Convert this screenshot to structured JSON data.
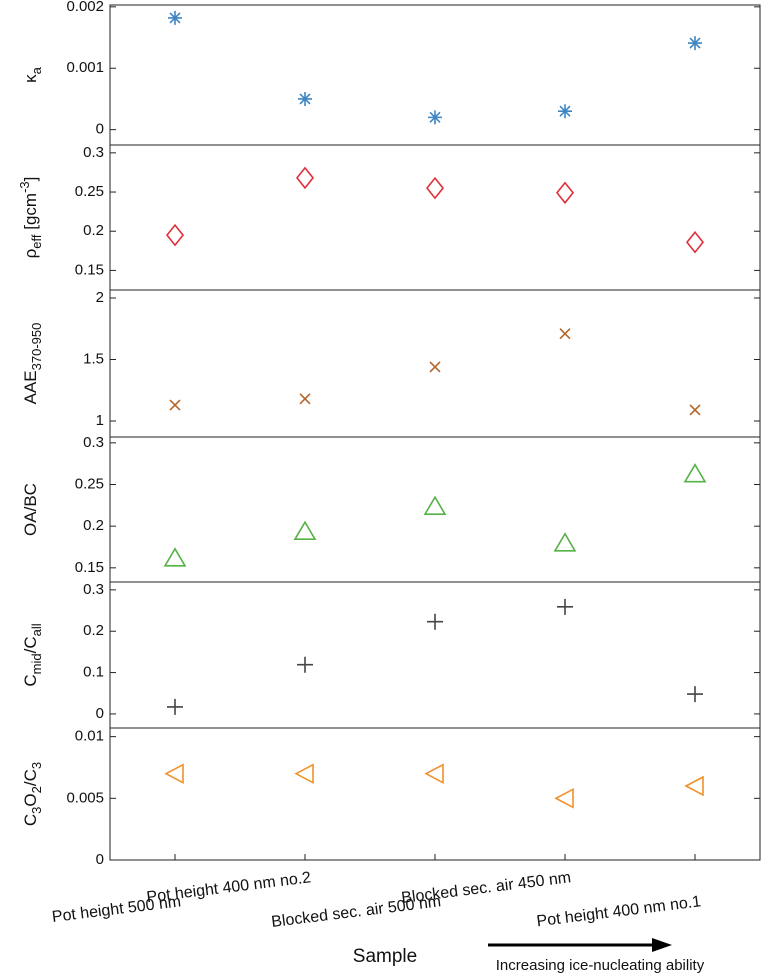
{
  "chart_data": {
    "type": "scatter",
    "categories": [
      "Pot height 500 nm",
      "Pot height 400 nm no.2",
      "Blocked sec. air 500 nm",
      "Blocked sec. air 450 nm",
      "Pot height 400 nm no.1"
    ],
    "xlabel": "Sample",
    "annotation": "Increasing ice-nucleating ability",
    "panels": [
      {
        "ylabel": [
          {
            "text": "κ"
          },
          {
            "text": "a",
            "shift": "sub"
          }
        ],
        "ylim": [
          -0.00025,
          0.00203
        ],
        "yticks": [
          0,
          0.001,
          0.002
        ],
        "series": [
          {
            "marker": "asterisk",
            "color": "#3f86c2",
            "values": [
              0.00182,
              0.0005,
              0.0002,
              0.0003,
              0.00141
            ]
          }
        ]
      },
      {
        "ylabel": [
          {
            "text": "ρ"
          },
          {
            "text": "eff",
            "shift": "sub"
          },
          {
            "text": " [gcm"
          },
          {
            "text": "-3",
            "shift": "super"
          },
          {
            "text": "]"
          }
        ],
        "ylim": [
          0.125,
          0.31
        ],
        "yticks": [
          0.15,
          0.2,
          0.25,
          0.3
        ],
        "series": [
          {
            "marker": "diamond",
            "color": "#e0303a",
            "values": [
              0.195,
              0.268,
              0.255,
              0.249,
              0.186
            ]
          }
        ]
      },
      {
        "ylabel": [
          {
            "text": "AAE"
          },
          {
            "text": "370-950",
            "shift": "sub"
          }
        ],
        "ylim": [
          0.87,
          2.065
        ],
        "yticks": [
          1,
          1.5,
          2
        ],
        "series": [
          {
            "marker": "cross",
            "color": "#b5652a",
            "values": [
              1.13,
              1.18,
              1.44,
              1.71,
              1.09
            ]
          }
        ]
      },
      {
        "ylabel": [
          {
            "text": "OA/BC"
          }
        ],
        "ylim": [
          0.133,
          0.307
        ],
        "yticks": [
          0.15,
          0.2,
          0.25,
          0.3
        ],
        "series": [
          {
            "marker": "triangle",
            "color": "#55b245",
            "values": [
              0.162,
              0.194,
              0.224,
              0.18,
              0.263
            ]
          }
        ]
      },
      {
        "ylabel": [
          {
            "text": "C"
          },
          {
            "text": "mid",
            "shift": "sub"
          },
          {
            "text": "/C"
          },
          {
            "text": "all",
            "shift": "sub"
          }
        ],
        "ylim": [
          -0.034,
          0.319
        ],
        "yticks": [
          0,
          0.1,
          0.2,
          0.3
        ],
        "series": [
          {
            "marker": "plus",
            "color": "#444444",
            "values": [
              0.017,
              0.119,
              0.223,
              0.259,
              0.048
            ]
          }
        ]
      },
      {
        "ylabel": [
          {
            "text": "C"
          },
          {
            "text": "3",
            "shift": "sub"
          },
          {
            "text": "O"
          },
          {
            "text": "2",
            "shift": "sub"
          },
          {
            "text": "/C"
          },
          {
            "text": "3",
            "shift": "sub"
          }
        ],
        "ylim": [
          0,
          0.0107
        ],
        "yticks": [
          0,
          0.005,
          0.01
        ],
        "series": [
          {
            "marker": "triangle-left",
            "color": "#f0912a",
            "values": [
              0.007,
              0.007,
              0.007,
              0.005,
              0.006
            ]
          }
        ]
      }
    ]
  }
}
